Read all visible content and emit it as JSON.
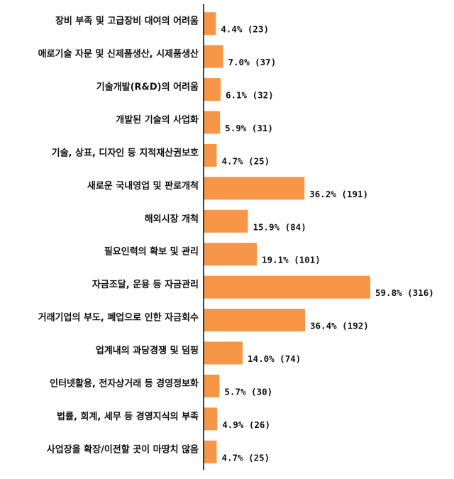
{
  "chart_data": {
    "type": "bar",
    "orientation": "horizontal",
    "title": "",
    "xlabel": "",
    "ylabel": "",
    "grid": false,
    "legend": "none",
    "bar_color": "#F79646",
    "axis_color": "#000000",
    "xlim": [
      0,
      62
    ],
    "categories": [
      "장비 부족 및 고급장비 대여의 어려움",
      "애로기술 자문 및 신제품생산, 시제품생산",
      "기술개발(R&D)의 어려움",
      "개발된 기술의 사업화",
      "기술, 상표, 디자인 등 지적재산권보호",
      "새로운 국내영업 및 판로개척",
      "해외시장 개척",
      "필요인력의 확보 및 관리",
      "자금조달, 운용 등 자금관리",
      "거래기업의 부도, 폐업으로 인한 자금회수",
      "업계내의 과당경쟁 및 덤핑",
      "인터넷활용, 전자상거래 등 경영정보화",
      "법률, 회계, 세무 등 경영지식의 부족",
      "사업장을 확장/이전할 곳이 마땅치 않음"
    ],
    "values": [
      4.4,
      7.0,
      6.1,
      5.9,
      4.7,
      36.2,
      15.9,
      19.1,
      59.8,
      36.4,
      14.0,
      5.7,
      4.9,
      4.7
    ],
    "data_labels": [
      "4.4% (23)",
      "7.0% (37)",
      "6.1% (32)",
      "5.9% (31)",
      "4.7% (25)",
      "36.2% (191)",
      "15.9% (84)",
      "19.1% (101)",
      "59.8% (316)",
      "36.4% (192)",
      "14.0% (74)",
      "5.7% (30)",
      "4.9% (26)",
      "4.7% (25)"
    ]
  }
}
